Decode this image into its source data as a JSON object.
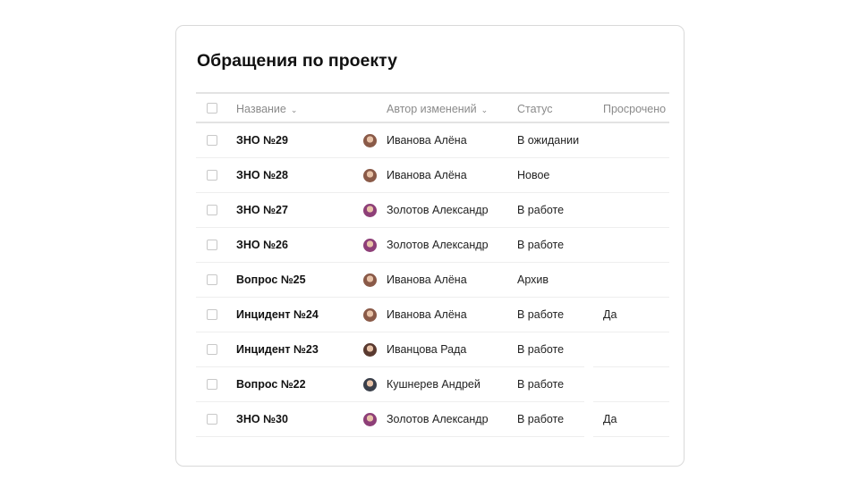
{
  "title": "Обращения по проекту",
  "columns": {
    "name": "Название",
    "author": "Автор изменений",
    "status": "Статус",
    "overdue": "Просрочено"
  },
  "rows": [
    {
      "name": "ЗНО №29",
      "author": "Иванова Алёна",
      "avatar_color": "#8a5a48",
      "status": "В ожидании",
      "overdue": ""
    },
    {
      "name": "ЗНО №28",
      "author": "Иванова Алёна",
      "avatar_color": "#8a5a48",
      "status": "Новое",
      "overdue": ""
    },
    {
      "name": "ЗНО №27",
      "author": "Золотов Александр",
      "avatar_color": "#8e3f78",
      "status": "В работе",
      "overdue": ""
    },
    {
      "name": "ЗНО №26",
      "author": "Золотов Александр",
      "avatar_color": "#8e3f78",
      "status": "В работе",
      "overdue": ""
    },
    {
      "name": "Вопрос №25",
      "author": "Иванова Алёна",
      "avatar_color": "#8a5a48",
      "status": "Архив",
      "overdue": ""
    },
    {
      "name": "Инцидент №24",
      "author": "Иванова Алёна",
      "avatar_color": "#8a5a48",
      "status": "В работе",
      "overdue": "Да"
    },
    {
      "name": "Инцидент №23",
      "author": "Иванцова Рада",
      "avatar_color": "#5a3a30",
      "status": "В работе",
      "overdue": ""
    },
    {
      "name": "Вопрос №22",
      "author": "Кушнерев Андрей",
      "avatar_color": "#3a3f4a",
      "status": "В работе",
      "overdue": ""
    },
    {
      "name": "ЗНО №30",
      "author": "Золотов Александр",
      "avatar_color": "#8e3f78",
      "status": "В работе",
      "overdue": "Да"
    }
  ]
}
